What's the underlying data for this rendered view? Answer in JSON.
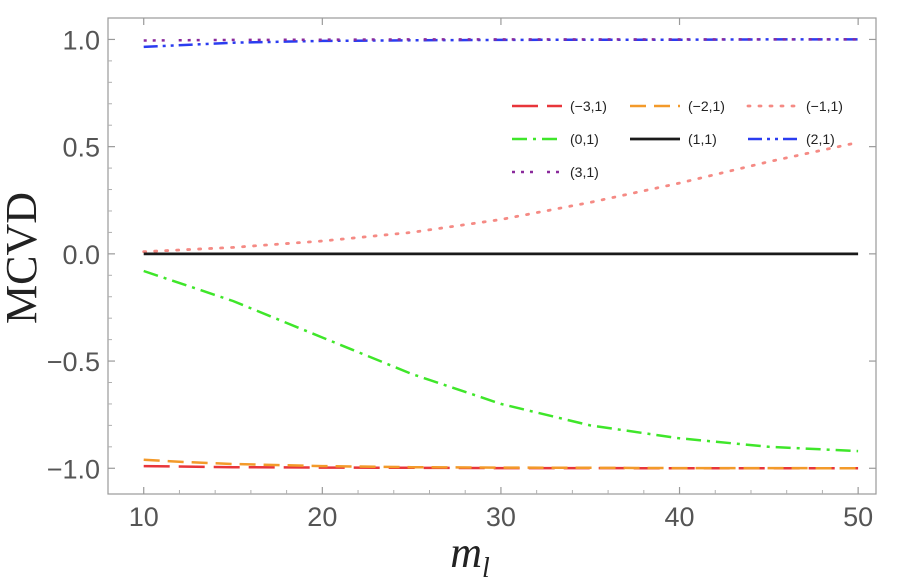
{
  "chart_data": {
    "type": "line",
    "title": "",
    "xlabel": "m",
    "xlabel_sub": "l",
    "ylabel": "MCVD",
    "xlim": [
      8.0,
      51.0
    ],
    "ylim": [
      -1.12,
      1.1
    ],
    "xticks": [
      10,
      20,
      30,
      40,
      50
    ],
    "xtick_labels": [
      "10",
      "20",
      "30",
      "40",
      "50"
    ],
    "yticks": [
      -1.0,
      -0.5,
      0.0,
      0.5,
      1.0
    ],
    "ytick_labels": [
      "−1.0",
      "−0.5",
      "0.0",
      "0.5",
      "1.0"
    ],
    "grid": false,
    "legend_position": "top-right",
    "series": [
      {
        "name": "(−3,1)",
        "color": "#e8353a",
        "dash": "26,9",
        "width": 2.5,
        "x": [
          10,
          15,
          20,
          25,
          30,
          35,
          40,
          45,
          50
        ],
        "y": [
          -0.99,
          -0.995,
          -0.997,
          -0.998,
          -0.999,
          -0.999,
          -1.0,
          -1.0,
          -1.0
        ]
      },
      {
        "name": "(−2,1)",
        "color": "#f39a2a",
        "dash": "16,8",
        "width": 2.5,
        "x": [
          10,
          12,
          15,
          20,
          25,
          30,
          35,
          40,
          45,
          50
        ],
        "y": [
          -0.96,
          -0.97,
          -0.98,
          -0.99,
          -0.995,
          -0.997,
          -0.998,
          -0.999,
          -0.999,
          -1.0
        ]
      },
      {
        "name": "(−1,1)",
        "color": "#f58a84",
        "dash": "2,9",
        "width": 2.8,
        "x": [
          10,
          15,
          20,
          25,
          30,
          35,
          40,
          45,
          50
        ],
        "y": [
          0.01,
          0.03,
          0.06,
          0.1,
          0.16,
          0.24,
          0.33,
          0.43,
          0.52
        ]
      },
      {
        "name": "(0,1)",
        "color": "#3fe62a",
        "dash": "15,6,3,6",
        "width": 2.5,
        "x": [
          10,
          15,
          20,
          25,
          30,
          35,
          40,
          45,
          50
        ],
        "y": [
          -0.08,
          -0.22,
          -0.39,
          -0.56,
          -0.7,
          -0.8,
          -0.86,
          -0.9,
          -0.92
        ]
      },
      {
        "name": "(1,1)",
        "color": "#1a1a1a",
        "dash": "",
        "width": 2.8,
        "x": [
          10,
          50
        ],
        "y": [
          0.0,
          0.0
        ]
      },
      {
        "name": "(2,1)",
        "color": "#2a3cf0",
        "dash": "14,5,3,5,3,5",
        "width": 2.5,
        "x": [
          10,
          15,
          20,
          25,
          30,
          35,
          40,
          45,
          50
        ],
        "y": [
          0.965,
          0.985,
          0.993,
          0.996,
          0.998,
          0.999,
          0.999,
          1.0,
          1.0
        ]
      },
      {
        "name": "(3,1)",
        "color": "#8a2a9c",
        "dash": "3,6,3,6,3,14",
        "width": 2.5,
        "x": [
          10,
          15,
          20,
          25,
          30,
          35,
          40,
          45,
          50
        ],
        "y": [
          0.995,
          0.998,
          0.999,
          1.0,
          1.0,
          1.0,
          1.0,
          1.0,
          1.0
        ]
      }
    ]
  }
}
